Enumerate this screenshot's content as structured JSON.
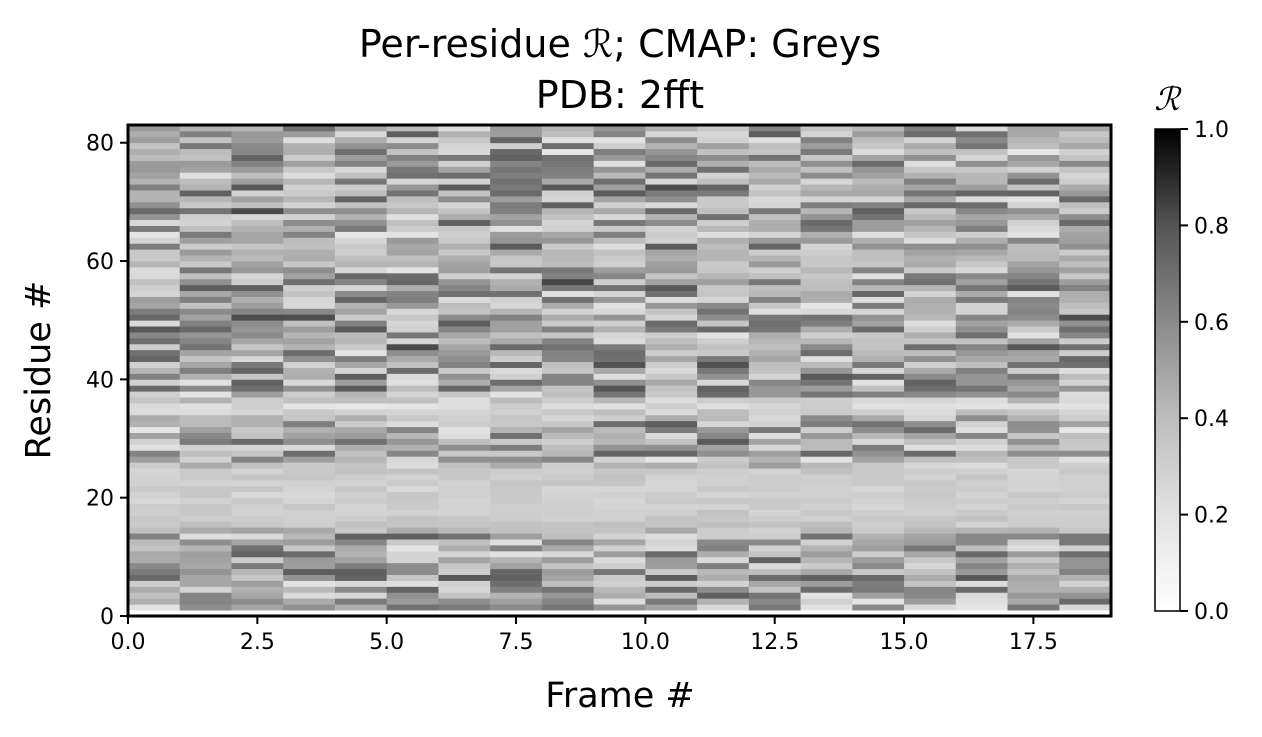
{
  "chart_data": {
    "type": "heatmap",
    "title": "Per-residue ℛ; CMAP: Greys",
    "subtitle": "PDB: 2fft",
    "xlabel": "Frame #",
    "ylabel": "Residue #",
    "colorbar_label": "ℛ",
    "colormap": "Greys",
    "xlim": [
      0,
      19
    ],
    "ylim": [
      0,
      83
    ],
    "clim": [
      0.0,
      1.0
    ],
    "x_ticks": [
      0.0,
      2.5,
      5.0,
      7.5,
      10.0,
      12.5,
      15.0,
      17.5
    ],
    "x_tick_labels": [
      "0.0",
      "2.5",
      "5.0",
      "7.5",
      "10.0",
      "12.5",
      "15.0",
      "17.5"
    ],
    "y_ticks": [
      0,
      20,
      40,
      60,
      80
    ],
    "y_tick_labels": [
      "0",
      "20",
      "40",
      "60",
      "80"
    ],
    "colorbar_ticks": [
      0.0,
      0.2,
      0.4,
      0.6,
      0.8,
      1.0
    ],
    "colorbar_tick_labels": [
      "0.0",
      "0.2",
      "0.4",
      "0.6",
      "0.8",
      "1.0"
    ],
    "frames": 19,
    "residues": 82,
    "residue_start": 1,
    "residue_mean_values": [
      0.42,
      0.46,
      0.48,
      0.5,
      0.47,
      0.52,
      0.49,
      0.46,
      0.5,
      0.48,
      0.45,
      0.47,
      0.5,
      0.4,
      0.34,
      0.33,
      0.32,
      0.31,
      0.3,
      0.3,
      0.3,
      0.31,
      0.32,
      0.33,
      0.38,
      0.44,
      0.48,
      0.46,
      0.52,
      0.47,
      0.45,
      0.5,
      0.46,
      0.32,
      0.26,
      0.33,
      0.45,
      0.52,
      0.48,
      0.5,
      0.46,
      0.55,
      0.5,
      0.47,
      0.58,
      0.5,
      0.46,
      0.52,
      0.49,
      0.55,
      0.47,
      0.43,
      0.5,
      0.46,
      0.52,
      0.58,
      0.48,
      0.44,
      0.42,
      0.4,
      0.42,
      0.5,
      0.43,
      0.45,
      0.47,
      0.52,
      0.49,
      0.55,
      0.5,
      0.47,
      0.52,
      0.55,
      0.44,
      0.48,
      0.5,
      0.46,
      0.52,
      0.45,
      0.5,
      0.47,
      0.52,
      0.48
    ],
    "residue_spread": [
      0.28,
      0.28,
      0.28,
      0.28,
      0.28,
      0.28,
      0.28,
      0.28,
      0.28,
      0.28,
      0.28,
      0.28,
      0.28,
      0.12,
      0.06,
      0.05,
      0.05,
      0.05,
      0.05,
      0.05,
      0.05,
      0.05,
      0.05,
      0.06,
      0.15,
      0.28,
      0.28,
      0.28,
      0.28,
      0.28,
      0.28,
      0.28,
      0.22,
      0.1,
      0.1,
      0.12,
      0.28,
      0.28,
      0.28,
      0.28,
      0.28,
      0.28,
      0.28,
      0.28,
      0.28,
      0.28,
      0.28,
      0.28,
      0.28,
      0.28,
      0.28,
      0.28,
      0.28,
      0.28,
      0.28,
      0.28,
      0.28,
      0.28,
      0.12,
      0.08,
      0.12,
      0.28,
      0.2,
      0.28,
      0.28,
      0.28,
      0.28,
      0.28,
      0.28,
      0.28,
      0.28,
      0.28,
      0.28,
      0.28,
      0.28,
      0.28,
      0.28,
      0.28,
      0.28,
      0.28,
      0.28,
      0.28
    ]
  }
}
